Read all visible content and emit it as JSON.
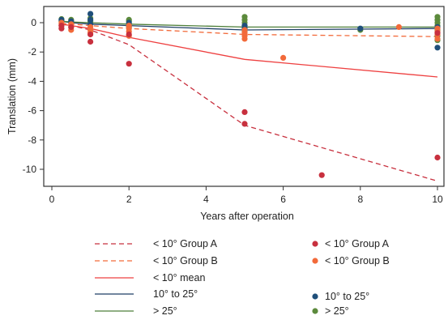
{
  "colors": {
    "groupA": "#c8303e",
    "groupB": "#f26a3a",
    "mean": "#ee4040",
    "blue": "#1f3f66",
    "green": "#4e7f3a",
    "blueDot": "#1f4f7a",
    "greenDot": "#5c8a3c"
  },
  "chart_data": {
    "type": "scatter",
    "title": "",
    "xlabel": "Years after operation",
    "ylabel": "Translation (mm)",
    "xlim": [
      0,
      10
    ],
    "ylim": [
      -11.3,
      1.0
    ],
    "xticks": [
      0,
      2,
      4,
      6,
      8,
      10
    ],
    "yticks": [
      0,
      -2,
      -4,
      -6,
      -8,
      -10
    ],
    "grid": false,
    "legend_position": "below",
    "line_series": [
      {
        "name": "< 10° Group A",
        "style": "dashed",
        "color_key": "groupA",
        "x": [
          0.25,
          0.5,
          1,
          2,
          5,
          10
        ],
        "y": [
          -0.1,
          -0.2,
          -0.5,
          -1.5,
          -7.0,
          -10.8
        ]
      },
      {
        "name": "< 10° Group B",
        "style": "dashed",
        "color_key": "groupB",
        "x": [
          0.25,
          0.5,
          1,
          2,
          5,
          10
        ],
        "y": [
          -0.05,
          -0.1,
          -0.2,
          -0.4,
          -0.8,
          -0.95
        ]
      },
      {
        "name": "< 10° mean",
        "style": "solid",
        "color_key": "mean",
        "x": [
          0.25,
          0.5,
          1,
          2,
          5,
          10
        ],
        "y": [
          -0.1,
          -0.2,
          -0.4,
          -1.0,
          -2.5,
          -3.7
        ]
      },
      {
        "name": "10° to 25°",
        "style": "solid",
        "color_key": "blue",
        "x": [
          0.25,
          0.5,
          1,
          2,
          5,
          10
        ],
        "y": [
          0.1,
          0.0,
          -0.1,
          -0.2,
          -0.5,
          -0.4
        ]
      },
      {
        "name": "> 25°",
        "style": "solid",
        "color_key": "green",
        "x": [
          0.25,
          0.5,
          1,
          2,
          5,
          10
        ],
        "y": [
          0.1,
          0.05,
          0.0,
          -0.1,
          -0.3,
          -0.3
        ]
      }
    ],
    "point_series": [
      {
        "name": "< 10° Group A",
        "color_key": "groupA",
        "points": [
          [
            0.25,
            -0.2
          ],
          [
            0.25,
            -0.4
          ],
          [
            0.5,
            -0.3
          ],
          [
            1,
            -0.8
          ],
          [
            1,
            -1.3
          ],
          [
            2,
            -0.8
          ],
          [
            2,
            -2.8
          ],
          [
            5,
            -6.1
          ],
          [
            5,
            -6.9
          ],
          [
            7,
            -10.4
          ],
          [
            10,
            -9.2
          ],
          [
            10,
            -0.7
          ]
        ]
      },
      {
        "name": "< 10° Group B",
        "color_key": "groupB",
        "points": [
          [
            0.25,
            0.0
          ],
          [
            0.25,
            -0.1
          ],
          [
            0.25,
            -0.2
          ],
          [
            0.5,
            -0.1
          ],
          [
            0.5,
            -0.3
          ],
          [
            0.5,
            -0.5
          ],
          [
            1,
            -0.3
          ],
          [
            1,
            -0.5
          ],
          [
            1,
            -0.7
          ],
          [
            2,
            -0.2
          ],
          [
            2,
            -0.4
          ],
          [
            2,
            -0.6
          ],
          [
            2,
            -0.9
          ],
          [
            5,
            -0.5
          ],
          [
            5,
            -0.7
          ],
          [
            5,
            -0.9
          ],
          [
            5,
            -1.1
          ],
          [
            6,
            -2.4
          ],
          [
            9,
            -0.3
          ],
          [
            10,
            -0.4
          ],
          [
            10,
            -0.6
          ],
          [
            10,
            -0.8
          ],
          [
            10,
            -1.1
          ]
        ]
      },
      {
        "name": "10° to 25°",
        "color_key": "blueDot",
        "points": [
          [
            0.25,
            0.2
          ],
          [
            0.5,
            0.1
          ],
          [
            1,
            0.6
          ],
          [
            1,
            0.2
          ],
          [
            1,
            -0.1
          ],
          [
            2,
            0.0
          ],
          [
            2,
            -0.2
          ],
          [
            5,
            -0.2
          ],
          [
            5,
            -0.4
          ],
          [
            8,
            -0.4
          ],
          [
            10,
            -0.3
          ],
          [
            10,
            -1.7
          ]
        ]
      },
      {
        "name": "> 25°",
        "color_key": "greenDot",
        "points": [
          [
            0.25,
            0.25
          ],
          [
            0.25,
            0.1
          ],
          [
            0.5,
            0.2
          ],
          [
            0.5,
            0.0
          ],
          [
            1,
            0.3
          ],
          [
            1,
            0.1
          ],
          [
            2,
            0.2
          ],
          [
            2,
            0.1
          ],
          [
            2,
            -0.1
          ],
          [
            2,
            -0.3
          ],
          [
            5,
            0.4
          ],
          [
            5,
            0.2
          ],
          [
            5,
            0.0
          ],
          [
            5,
            -0.2
          ],
          [
            5,
            -0.4
          ],
          [
            5,
            -0.6
          ],
          [
            8,
            -0.5
          ],
          [
            10,
            0.4
          ],
          [
            10,
            0.2
          ],
          [
            10,
            0.0
          ],
          [
            10,
            -0.2
          ],
          [
            10,
            -0.5
          ],
          [
            10,
            -0.9
          ],
          [
            10,
            -1.2
          ]
        ]
      }
    ]
  }
}
